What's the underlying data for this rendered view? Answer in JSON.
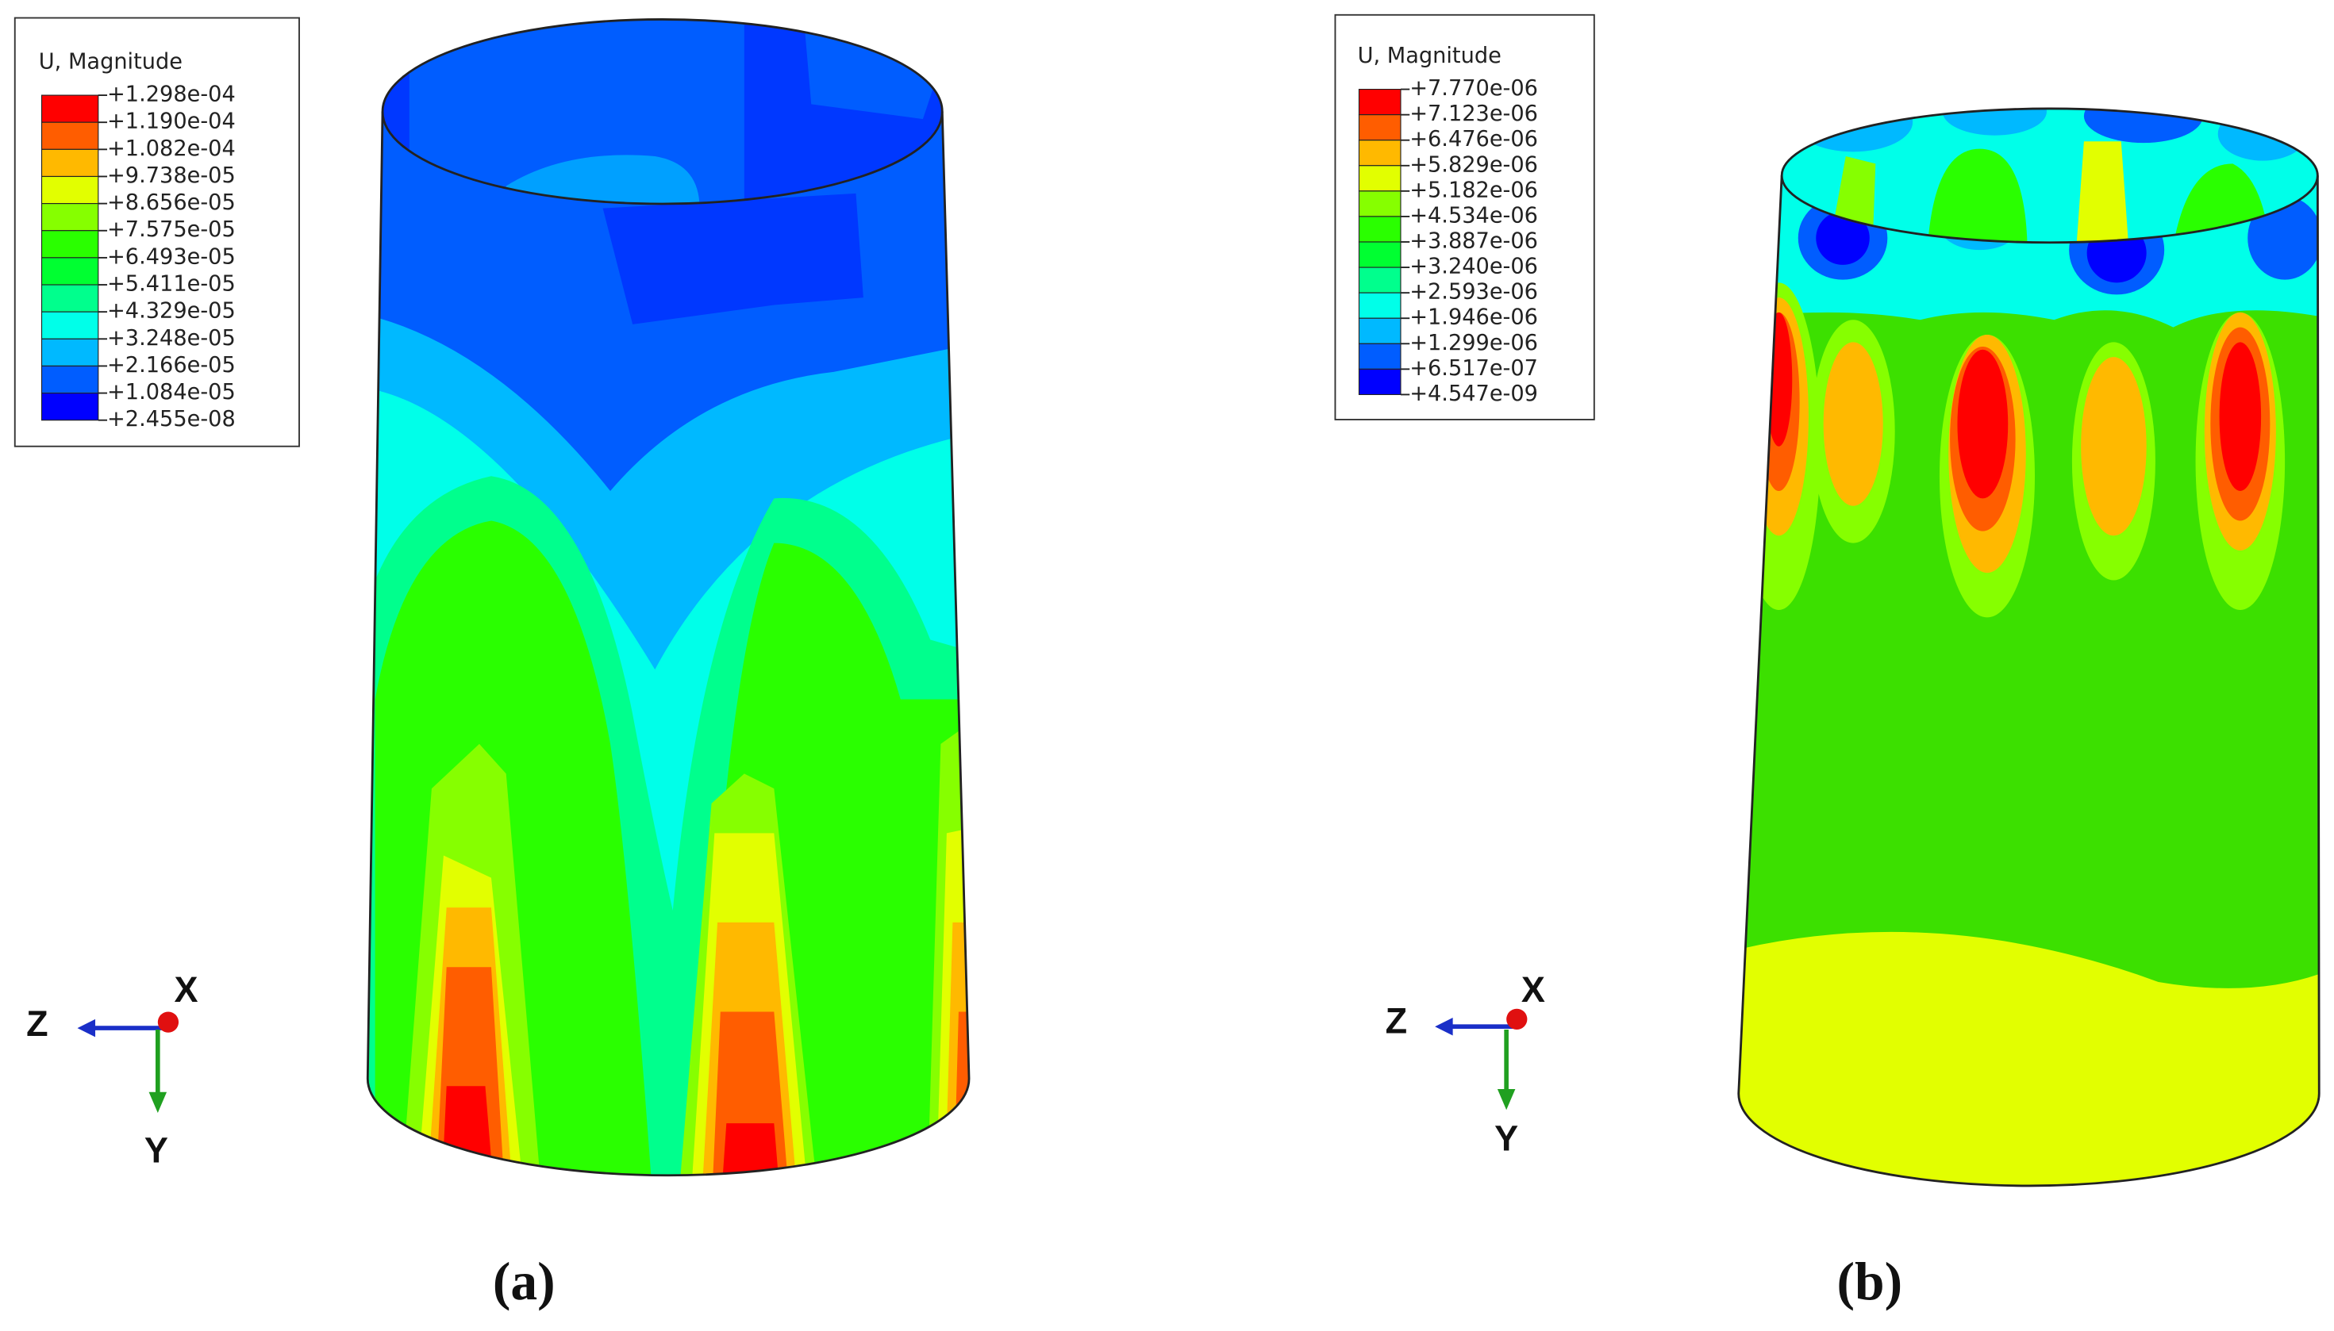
{
  "panels": [
    {
      "legend": {
        "title": "U, Magnitude",
        "values": [
          "+1.298e-04",
          "+1.190e-04",
          "+1.082e-04",
          "+9.738e-05",
          "+8.656e-05",
          "+7.575e-05",
          "+6.493e-05",
          "+5.411e-05",
          "+4.329e-05",
          "+3.248e-05",
          "+2.166e-05",
          "+1.084e-05",
          "+2.455e-08"
        ]
      },
      "axes": {
        "x": "X",
        "y": "Y",
        "z": "Z"
      },
      "caption": "(a)"
    },
    {
      "legend": {
        "title": "U, Magnitude",
        "values": [
          "+7.770e-06",
          "+7.123e-06",
          "+6.476e-06",
          "+5.829e-06",
          "+5.182e-06",
          "+4.534e-06",
          "+3.887e-06",
          "+3.240e-06",
          "+2.593e-06",
          "+1.946e-06",
          "+1.299e-06",
          "+6.517e-07",
          "+4.547e-09"
        ]
      },
      "axes": {
        "x": "X",
        "y": "Y",
        "z": "Z"
      },
      "caption": "(b)"
    }
  ]
}
